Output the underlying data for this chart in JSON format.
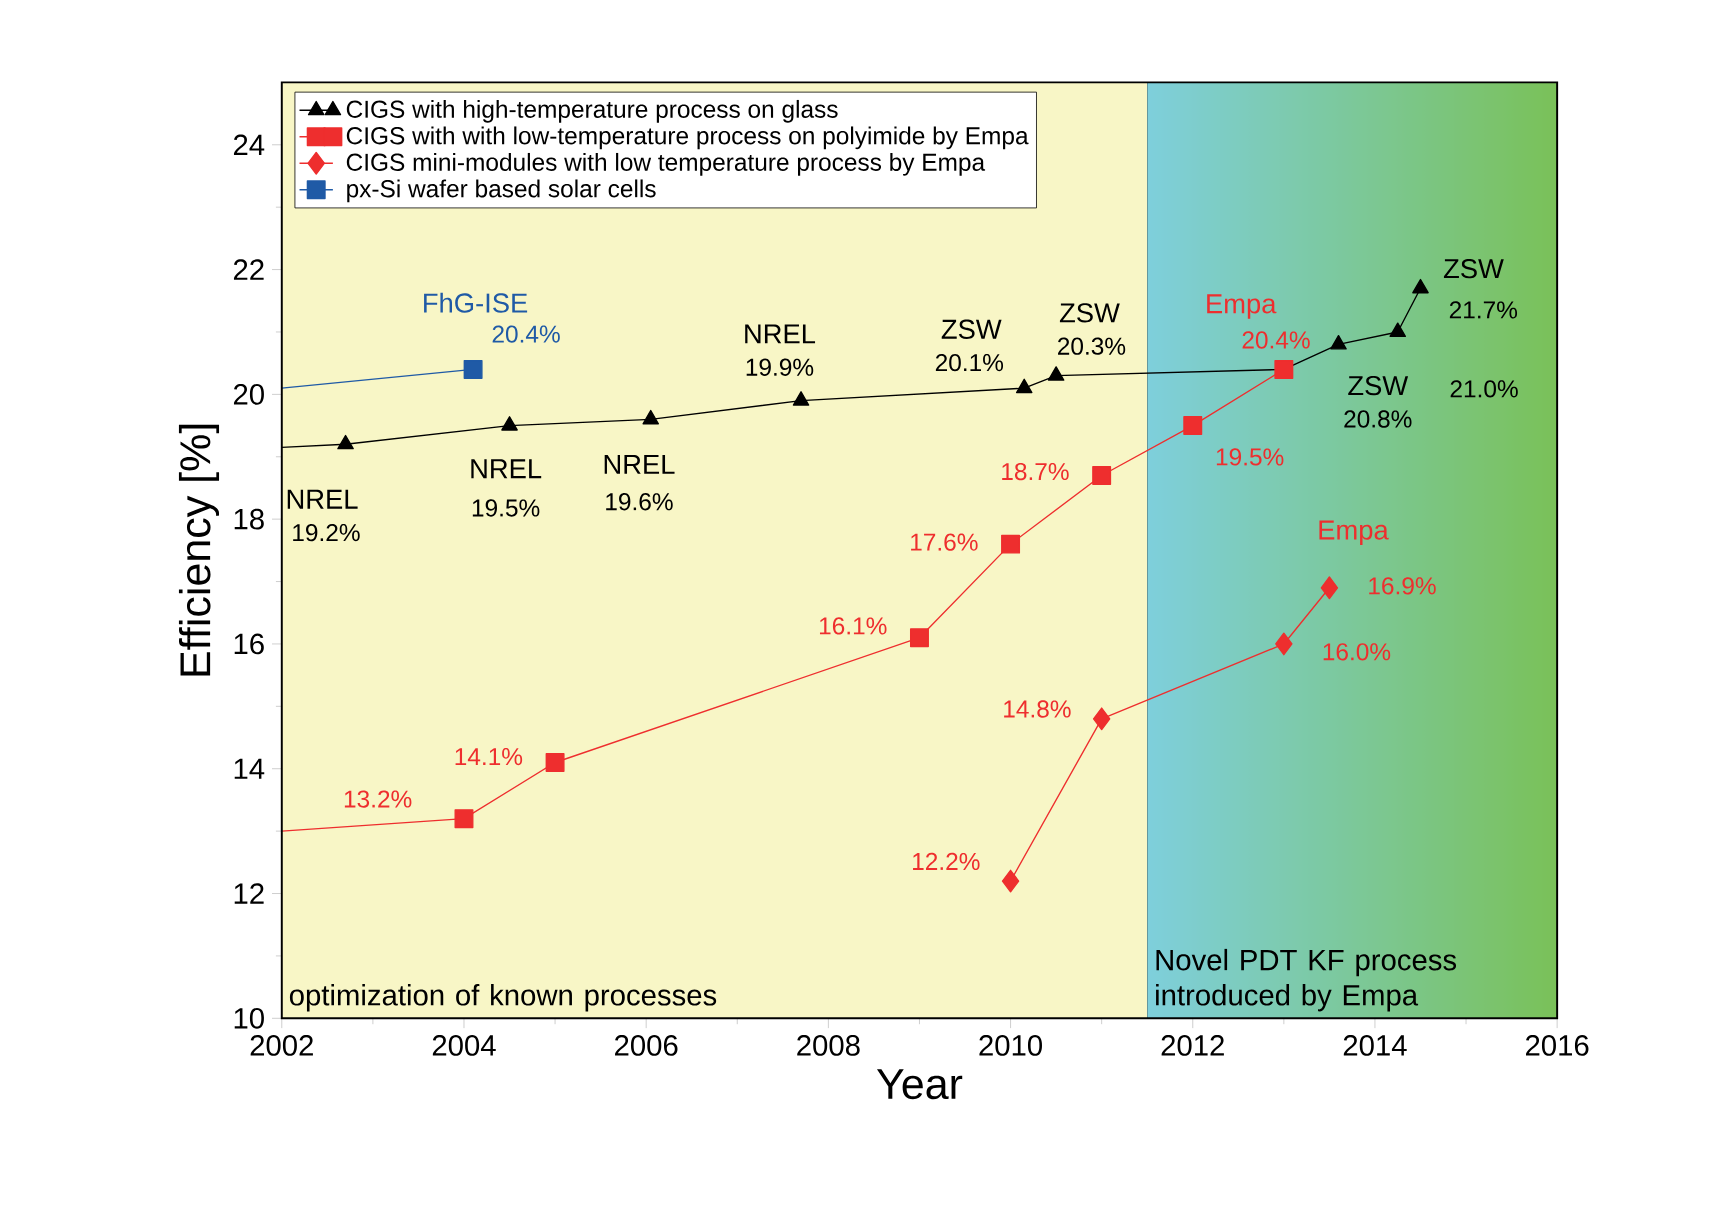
{
  "chart_data": {
    "type": "line",
    "xlabel": "Year",
    "ylabel": "Efficiency [%]",
    "xlim": [
      2002,
      2016
    ],
    "xticks": [
      2002,
      2004,
      2006,
      2008,
      2010,
      2012,
      2014,
      2016
    ],
    "ylim": [
      10,
      25
    ],
    "yticks": [
      10,
      12,
      14,
      16,
      18,
      20,
      22,
      24
    ],
    "grid": false,
    "legend": "top left",
    "series": [
      {
        "name": "CIGS with high-temperature process on glass",
        "color": "#000000",
        "marker": "triangle",
        "x": [
          2002,
          2002.7,
          2004.5,
          2006.05,
          2007.7,
          2010.15,
          2010.5,
          2013,
          2013.6,
          2014.25,
          2014.5
        ],
        "values": [
          19.15,
          19.2,
          19.5,
          19.6,
          19.9,
          20.1,
          20.3,
          20.4,
          20.8,
          21.0,
          21.7
        ],
        "value_labels": [
          null,
          "19.2%",
          "19.5%",
          "19.6%",
          "19.9%",
          "20.1%",
          "20.3%",
          null,
          "20.8%",
          "21.0%",
          "21.7%"
        ]
      },
      {
        "name": "CIGS with with low-temperature process on polyimide by Empa",
        "color": "#ee2e2e",
        "marker": "square",
        "x": [
          2002,
          2004,
          2005,
          2009,
          2010,
          2011,
          2012,
          2013
        ],
        "values": [
          13.0,
          13.2,
          14.1,
          16.1,
          17.6,
          18.7,
          19.5,
          20.4
        ],
        "value_labels": [
          null,
          "13.2%",
          "14.1%",
          "16.1%",
          "17.6%",
          "18.7%",
          "19.5%",
          "20.4%"
        ]
      },
      {
        "name": "CIGS mini-modules with low temperature process by Empa",
        "color": "#ee2e2e",
        "marker": "diamond",
        "x": [
          2010,
          2011,
          2013,
          2013.5
        ],
        "values": [
          12.2,
          14.8,
          16.0,
          16.9
        ],
        "value_labels": [
          "12.2%",
          "14.8%",
          "16.0%",
          "16.9%"
        ]
      },
      {
        "name": "px-Si wafer based solar cells",
        "color": "#1f5aa6",
        "marker": "square",
        "x": [
          2002,
          2004.1
        ],
        "values": [
          20.1,
          20.4
        ],
        "value_labels": [
          null,
          "20.4%"
        ]
      }
    ],
    "annotations": [
      {
        "text": "NREL",
        "x": 2002.7,
        "y": 19.2
      },
      {
        "text": "NREL",
        "x": 2004.5,
        "y": 19.5
      },
      {
        "text": "NREL",
        "x": 2006.05,
        "y": 19.6
      },
      {
        "text": "NREL",
        "x": 2007.7,
        "y": 19.9
      },
      {
        "text": "ZSW",
        "x": 2010.15,
        "y": 20.1
      },
      {
        "text": "ZSW",
        "x": 2010.5,
        "y": 20.3
      },
      {
        "text": "ZSW",
        "x": 2013.6,
        "y": 20.8
      },
      {
        "text": "ZSW",
        "x": 2014.5,
        "y": 21.7
      },
      {
        "text": "FhG-ISE",
        "x": 2004.1,
        "y": 20.4
      },
      {
        "text": "Empa",
        "x": 2013,
        "y": 20.4
      },
      {
        "text": "Empa",
        "x": 2013.5,
        "y": 16.9
      }
    ],
    "bands": [
      {
        "axis": "x",
        "from": 2002,
        "to": 2011.5,
        "label": "optimization of known processes",
        "color": "#f8f6c6"
      },
      {
        "axis": "x",
        "from": 2011.5,
        "to": 2016,
        "label": "Novel PDT KF process introduced by Empa",
        "color": "#7ecfdc"
      }
    ]
  }
}
